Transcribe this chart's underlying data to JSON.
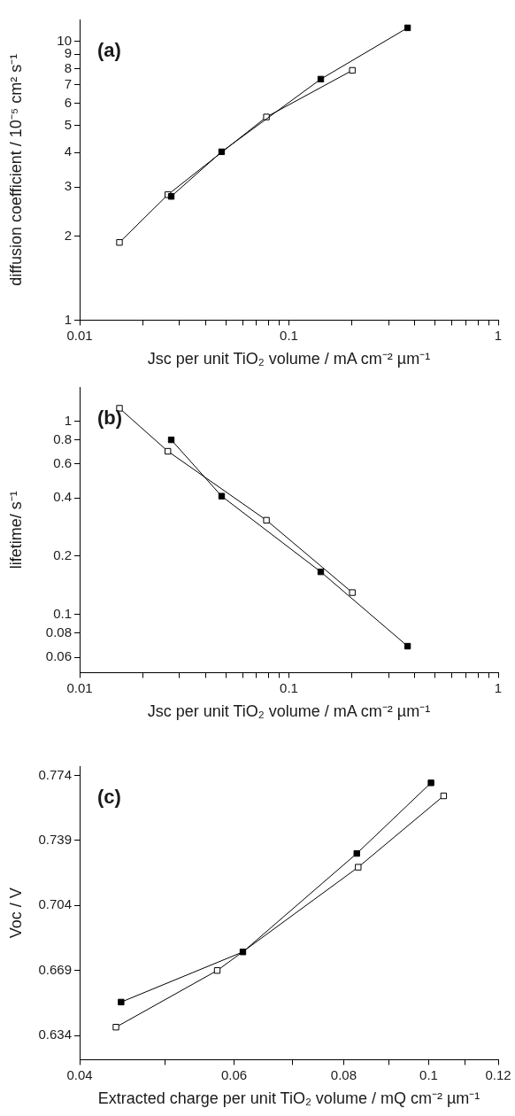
{
  "chart_data": [
    {
      "type": "line",
      "xlabel": "Jsc per unit TiO₂ volume / mA cm⁻² µm⁻¹",
      "ylabel": "diffusion coefficient / 10⁻⁵ cm² s⁻¹",
      "annotations": [
        "(a)"
      ],
      "log": "xy",
      "grid": false,
      "legend": false,
      "marker": "square",
      "line_style": "solid",
      "xlim": [
        0.01,
        1
      ],
      "ylim": [
        1,
        12
      ],
      "xticks": [
        0.01,
        {
          "value": 0.02,
          "label": null
        },
        {
          "value": 0.03,
          "label": null
        },
        {
          "value": 0.04,
          "label": null
        },
        {
          "value": 0.05,
          "label": null
        },
        {
          "value": 0.06,
          "label": null
        },
        {
          "value": 0.07,
          "label": null
        },
        {
          "value": 0.08,
          "label": null
        },
        {
          "value": 0.09,
          "label": null
        },
        0.1,
        {
          "value": 0.2,
          "label": null
        },
        {
          "value": 0.3,
          "label": null
        },
        {
          "value": 0.4,
          "label": null
        },
        {
          "value": 0.5,
          "label": null
        },
        {
          "value": 0.6,
          "label": null
        },
        {
          "value": 0.7,
          "label": null
        },
        {
          "value": 0.8,
          "label": null
        },
        {
          "value": 0.9,
          "label": null
        },
        1
      ],
      "yticks": [
        1,
        2,
        3,
        4,
        5,
        6,
        7,
        8,
        9,
        10
      ],
      "series": [
        {
          "color": "#000000",
          "x": [
            0.0274,
            0.0477,
            0.142,
            0.369
          ],
          "values": [
            2.78,
            4.02,
            7.33,
            11.2
          ]
        },
        {
          "color": "#ffffff",
          "x": [
            0.0155,
            0.0264,
            0.0781,
            0.201
          ],
          "values": [
            1.9,
            2.82,
            5.36,
            7.88
          ]
        }
      ]
    },
    {
      "type": "line",
      "xlabel": "Jsc per unit TiO₂ volume / mA cm⁻² µm⁻¹",
      "ylabel": "lifetime/ s⁻¹",
      "annotations": [
        "(b)"
      ],
      "log": "xy",
      "grid": false,
      "legend": false,
      "marker": "square",
      "line_style": "solid",
      "xlim": [
        0.01,
        1
      ],
      "ylim": [
        0.05,
        1.5
      ],
      "xticks": [
        0.01,
        {
          "value": 0.02,
          "label": null
        },
        {
          "value": 0.03,
          "label": null
        },
        {
          "value": 0.04,
          "label": null
        },
        {
          "value": 0.05,
          "label": null
        },
        {
          "value": 0.06,
          "label": null
        },
        {
          "value": 0.07,
          "label": null
        },
        {
          "value": 0.08,
          "label": null
        },
        {
          "value": 0.09,
          "label": null
        },
        0.1,
        {
          "value": 0.2,
          "label": null
        },
        {
          "value": 0.3,
          "label": null
        },
        {
          "value": 0.4,
          "label": null
        },
        {
          "value": 0.5,
          "label": null
        },
        {
          "value": 0.6,
          "label": null
        },
        {
          "value": 0.7,
          "label": null
        },
        {
          "value": 0.8,
          "label": null
        },
        {
          "value": 0.9,
          "label": null
        },
        1
      ],
      "yticks": [
        0.06,
        0.08,
        0.1,
        0.2,
        0.4,
        0.6,
        0.8,
        1
      ],
      "series": [
        {
          "color": "#000000",
          "x": [
            0.0274,
            0.0477,
            0.142,
            0.369
          ],
          "values": [
            0.8,
            0.409,
            0.166,
            0.0685
          ]
        },
        {
          "color": "#ffffff",
          "x": [
            0.0155,
            0.0264,
            0.0781,
            0.201
          ],
          "values": [
            1.165,
            0.698,
            0.307,
            0.1297
          ]
        }
      ]
    },
    {
      "type": "line",
      "xlabel": "Extracted charge per unit TiO₂ volume / mQ cm⁻² µm⁻¹",
      "ylabel": "Voc / V",
      "annotations": [
        "(c)"
      ],
      "log": "x",
      "grid": false,
      "legend": false,
      "marker": "square",
      "line_style": "solid",
      "xlim": [
        0.04,
        0.12
      ],
      "ylim": [
        0.621,
        0.779
      ],
      "xticks": [
        0.04,
        {
          "value": 0.05,
          "label": null
        },
        0.06,
        {
          "value": 0.07,
          "label": null
        },
        0.08,
        {
          "value": 0.09,
          "label": null
        },
        0.1,
        {
          "value": 0.11,
          "label": null
        },
        0.12
      ],
      "yticks": [
        0.634,
        0.669,
        0.704,
        0.739,
        0.774
      ],
      "series": [
        {
          "color": "#000000",
          "x": [
            0.0446,
            0.0614,
            0.0828,
            0.1006
          ],
          "values": [
            0.652,
            0.679,
            0.732,
            0.77
          ]
        },
        {
          "color": "#ffffff",
          "x": [
            0.044,
            0.0574,
            0.0831,
            0.104
          ],
          "values": [
            0.6385,
            0.669,
            0.7246,
            0.763
          ]
        }
      ]
    }
  ]
}
